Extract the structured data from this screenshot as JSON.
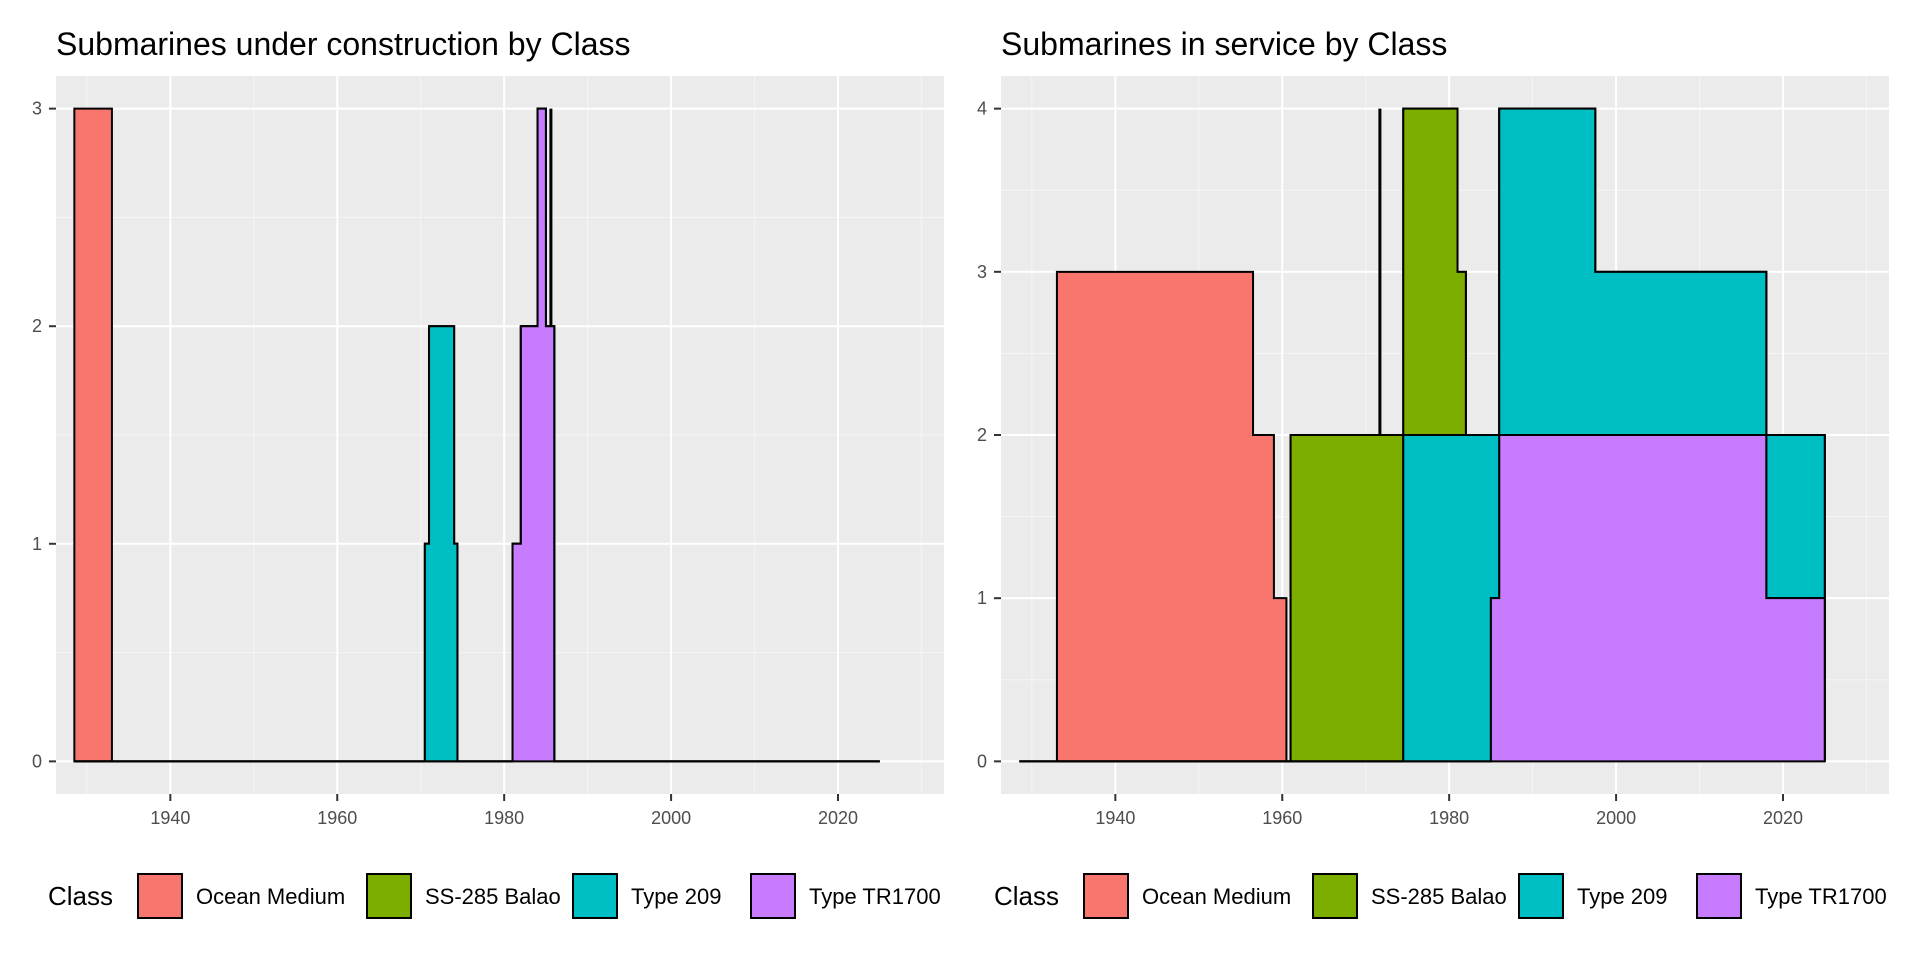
{
  "legend": {
    "title": "Class",
    "entries": [
      {
        "name": "Ocean Medium",
        "color": "#F8766D"
      },
      {
        "name": "SS-285 Balao",
        "color": "#7CAE00"
      },
      {
        "name": "Type 209",
        "color": "#00BFC4"
      },
      {
        "name": "Type TR1700",
        "color": "#C77CFF"
      }
    ]
  },
  "chart_data": [
    {
      "type": "area",
      "stacked": true,
      "step": true,
      "title": "Submarines under construction by Class",
      "xlabel": "",
      "ylabel": "",
      "xlim": [
        1926.3,
        2032.7
      ],
      "ylim": [
        -0.15,
        3.15
      ],
      "x_ticks": [
        1940,
        1960,
        1980,
        2000,
        2020
      ],
      "y_ticks": [
        0,
        1,
        2,
        3
      ],
      "grid": true,
      "legend_position": "bottom",
      "series": [
        {
          "name": "Ocean Medium",
          "color": "#F8766D",
          "points": [
            [
              1928.5,
              3
            ],
            [
              1933,
              3
            ],
            [
              1933,
              0
            ],
            [
              2025,
              0
            ]
          ]
        },
        {
          "name": "SS-285 Balao",
          "color": "#7CAE00",
          "points": [
            [
              1928.5,
              0
            ],
            [
              2025,
              0
            ]
          ]
        },
        {
          "name": "Type 209",
          "color": "#00BFC4",
          "points": [
            [
              1928.5,
              0
            ],
            [
              1970.5,
              0
            ],
            [
              1970.5,
              1
            ],
            [
              1971,
              1
            ],
            [
              1971,
              2
            ],
            [
              1974,
              2
            ],
            [
              1974,
              1
            ],
            [
              1974.4,
              1
            ],
            [
              1974.4,
              0
            ],
            [
              2025,
              0
            ]
          ]
        },
        {
          "name": "Type TR1700",
          "color": "#C77CFF",
          "points": [
            [
              1928.5,
              0
            ],
            [
              1981,
              0
            ],
            [
              1981,
              1
            ],
            [
              1982,
              1
            ],
            [
              1982,
              2
            ],
            [
              1984,
              2
            ],
            [
              1984,
              3
            ],
            [
              1985,
              3
            ],
            [
              1985,
              2
            ],
            [
              1986,
              2
            ],
            [
              1986,
              0
            ],
            [
              2025,
              0
            ]
          ]
        }
      ],
      "lines": [
        {
          "x": 1985.6,
          "y0": 2,
          "y1": 3,
          "color": "#000000"
        }
      ]
    },
    {
      "type": "area",
      "stacked": true,
      "step": true,
      "title": "Submarines in service by Class",
      "xlabel": "",
      "ylabel": "",
      "xlim": [
        1926.3,
        2032.7
      ],
      "ylim": [
        -0.2,
        4.2
      ],
      "x_ticks": [
        1940,
        1960,
        1980,
        2000,
        2020
      ],
      "y_ticks": [
        0,
        1,
        2,
        3,
        4
      ],
      "grid": true,
      "legend_position": "bottom",
      "series": [
        {
          "name": "Ocean Medium",
          "color": "#F8766D",
          "points": [
            [
              1928.5,
              0
            ],
            [
              1933,
              0
            ],
            [
              1933,
              3
            ],
            [
              1956.5,
              3
            ],
            [
              1956.5,
              2
            ],
            [
              1959,
              2
            ],
            [
              1959,
              1
            ],
            [
              1960.5,
              1
            ],
            [
              1960.5,
              0
            ],
            [
              2025,
              0
            ]
          ]
        },
        {
          "name": "SS-285 Balao",
          "color": "#7CAE00",
          "points": [
            [
              1928.5,
              0
            ],
            [
              1961,
              0
            ],
            [
              1961,
              2
            ],
            [
              1974.5,
              2
            ],
            [
              1974.5,
              2
            ],
            [
              1981,
              2
            ],
            [
              1981,
              1
            ],
            [
              1982,
              1
            ],
            [
              1982,
              0
            ],
            [
              2025,
              0
            ]
          ]
        },
        {
          "name": "Type 209",
          "color": "#00BFC4",
          "points": [
            [
              1928.5,
              0
            ],
            [
              1974.5,
              0
            ],
            [
              1974.5,
              2
            ],
            [
              1975,
              2
            ],
            [
              1975,
              2
            ],
            [
              1984.5,
              2
            ],
            [
              1984.5,
              2
            ],
            [
              1985,
              2
            ],
            [
              1985,
              1
            ],
            [
              1986,
              1
            ],
            [
              1986,
              2
            ],
            [
              1997.5,
              2
            ],
            [
              1997.5,
              1
            ],
            [
              2018,
              1
            ],
            [
              2018,
              1
            ],
            [
              2025,
              1
            ],
            [
              2025,
              0
            ]
          ]
        },
        {
          "name": "Type TR1700",
          "color": "#C77CFF",
          "points": [
            [
              1928.5,
              0
            ],
            [
              1985,
              0
            ],
            [
              1985,
              1
            ],
            [
              1986,
              1
            ],
            [
              1986,
              2
            ],
            [
              2018,
              2
            ],
            [
              2018,
              1
            ],
            [
              2025,
              1
            ],
            [
              2025,
              0
            ]
          ]
        }
      ],
      "lines": [
        {
          "x": 1971.7,
          "y0": 2,
          "y1": 4,
          "color": "#000000"
        }
      ]
    }
  ]
}
